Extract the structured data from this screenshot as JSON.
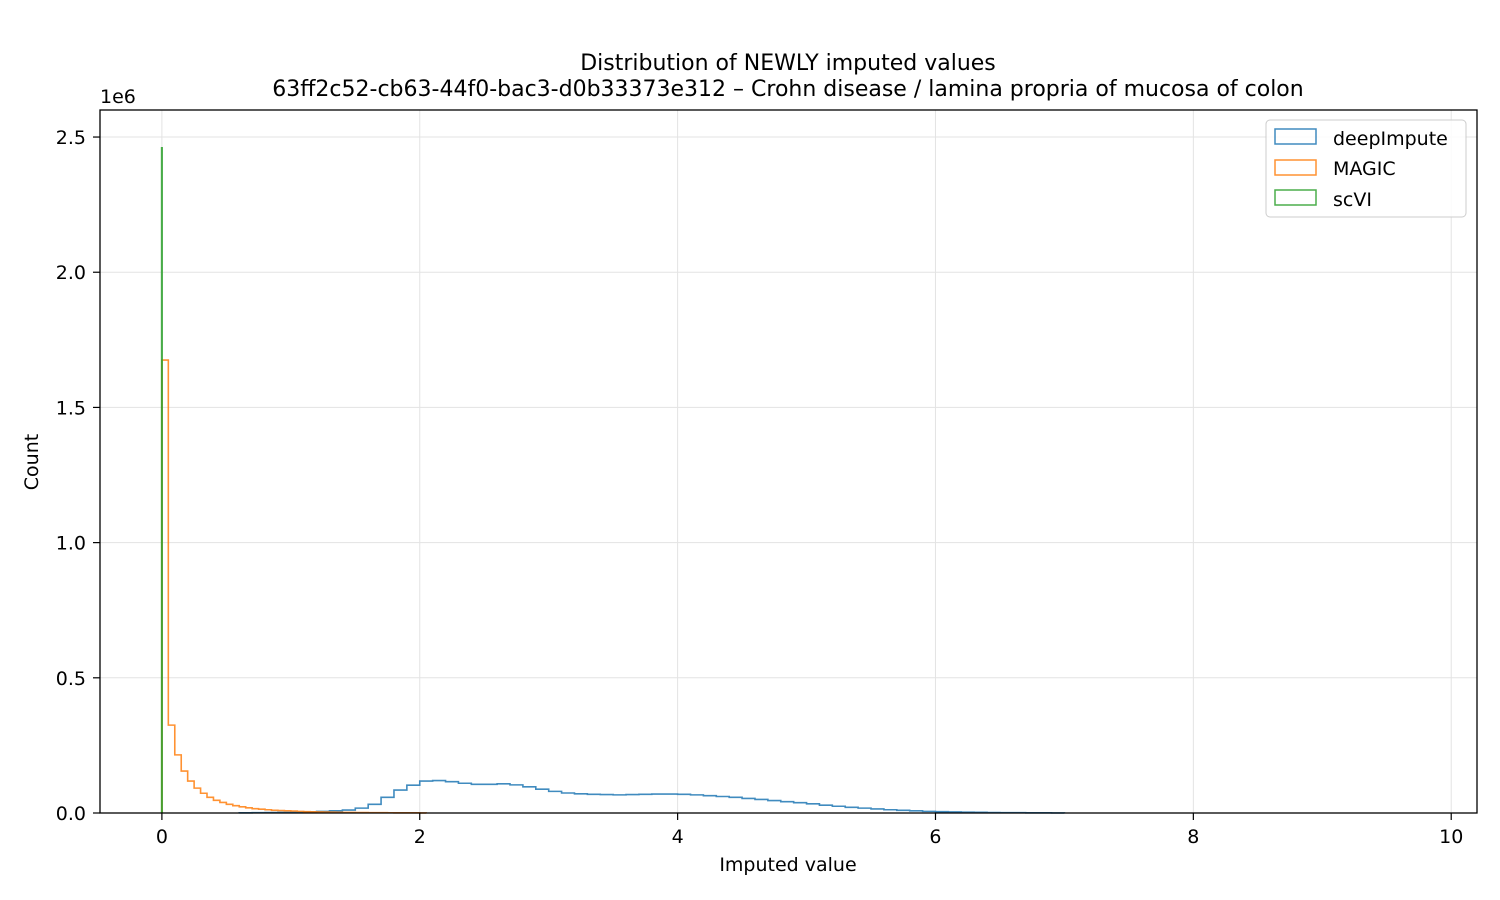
{
  "chart_data": {
    "type": "histogram",
    "title": "Distribution of NEWLY imputed values",
    "subtitle": "63ff2c52-cb63-44f0-bac3-d0b33373e312 – Crohn disease / lamina propria of mucosa of colon",
    "xlabel": "Imputed value",
    "ylabel": "Count",
    "y_offset_label": "1e6",
    "xlim": [
      -0.48,
      10.2
    ],
    "ylim": [
      0,
      2.6
    ],
    "y_scale": 1000000,
    "x_ticks": [
      0,
      2,
      4,
      6,
      8,
      10
    ],
    "x_tick_labels": [
      "0",
      "2",
      "4",
      "6",
      "8",
      "10"
    ],
    "y_ticks": [
      0.0,
      0.5,
      1.0,
      1.5,
      2.0,
      2.5
    ],
    "y_tick_labels": [
      "0.0",
      "0.5",
      "1.0",
      "1.5",
      "2.0",
      "2.5"
    ],
    "grid": true,
    "legend_position": "top-right",
    "series": [
      {
        "name": "deepImpute",
        "color": "#1f77b4",
        "bin_edges": [
          0.6,
          0.7,
          0.8,
          0.9,
          1.0,
          1.1,
          1.2,
          1.3,
          1.4,
          1.5,
          1.6,
          1.7,
          1.8,
          1.9,
          2.0,
          2.1,
          2.2,
          2.3,
          2.4,
          2.5,
          2.6,
          2.7,
          2.8,
          2.9,
          3.0,
          3.1,
          3.2,
          3.3,
          3.4,
          3.5,
          3.6,
          3.7,
          3.8,
          3.9,
          4.0,
          4.1,
          4.2,
          4.3,
          4.4,
          4.5,
          4.6,
          4.7,
          4.8,
          4.9,
          5.0,
          5.1,
          5.2,
          5.3,
          5.4,
          5.5,
          5.6,
          5.7,
          5.8,
          5.9,
          6.0,
          6.1,
          6.2,
          6.3,
          6.4,
          6.5,
          6.6,
          6.7,
          6.8,
          6.9,
          7.0
        ],
        "counts": [
          0.0008,
          0.001,
          0.0015,
          0.002,
          0.003,
          0.004,
          0.006,
          0.008,
          0.011,
          0.018,
          0.032,
          0.058,
          0.085,
          0.103,
          0.118,
          0.12,
          0.116,
          0.11,
          0.106,
          0.106,
          0.108,
          0.104,
          0.097,
          0.088,
          0.08,
          0.074,
          0.071,
          0.069,
          0.068,
          0.067,
          0.068,
          0.069,
          0.07,
          0.07,
          0.069,
          0.067,
          0.064,
          0.061,
          0.058,
          0.054,
          0.05,
          0.046,
          0.042,
          0.038,
          0.034,
          0.029,
          0.025,
          0.021,
          0.018,
          0.015,
          0.012,
          0.01,
          0.008,
          0.006,
          0.005,
          0.004,
          0.003,
          0.0024,
          0.0018,
          0.0014,
          0.001,
          0.0008,
          0.0006,
          0.0004
        ]
      },
      {
        "name": "MAGIC",
        "color": "#ff7f0e",
        "bin_edges": [
          0.0,
          0.05,
          0.1,
          0.15,
          0.2,
          0.25,
          0.3,
          0.35,
          0.4,
          0.45,
          0.5,
          0.55,
          0.6,
          0.65,
          0.7,
          0.75,
          0.8,
          0.85,
          0.9,
          0.95,
          1.0,
          1.05,
          1.1,
          1.15,
          1.2,
          1.25,
          1.3,
          1.35,
          1.4,
          1.45,
          1.5,
          1.55,
          1.6,
          1.65,
          1.7,
          1.75,
          1.8,
          1.85,
          1.9,
          1.95,
          2.0,
          2.05
        ],
        "counts": [
          1.675,
          0.325,
          0.215,
          0.155,
          0.118,
          0.092,
          0.073,
          0.058,
          0.047,
          0.039,
          0.032,
          0.027,
          0.023,
          0.019,
          0.016,
          0.014,
          0.012,
          0.01,
          0.009,
          0.008,
          0.007,
          0.006,
          0.005,
          0.0045,
          0.004,
          0.0035,
          0.003,
          0.0026,
          0.0023,
          0.002,
          0.0018,
          0.0016,
          0.0014,
          0.0012,
          0.001,
          0.0009,
          0.0008,
          0.0007,
          0.0006,
          0.0005,
          0.0004
        ]
      },
      {
        "name": "scVI",
        "color": "#2ca02c",
        "bin_edges": [
          -0.002,
          0.002
        ],
        "counts": [
          2.46
        ]
      }
    ]
  }
}
